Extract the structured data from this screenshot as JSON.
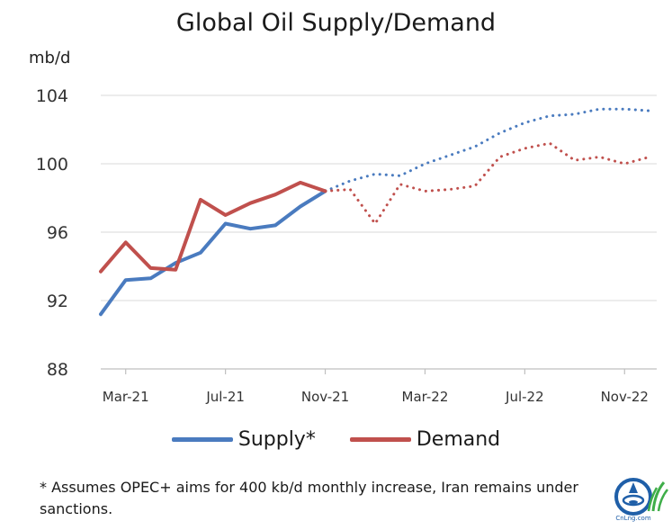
{
  "chart_data": {
    "type": "line",
    "title": "Global Oil Supply/Demand",
    "ylabel": "mb/d",
    "xlabel": "",
    "ylim": [
      88,
      104
    ],
    "yticks": [
      88,
      92,
      96,
      100,
      104
    ],
    "x": [
      "Feb-21",
      "Mar-21",
      "Apr-21",
      "May-21",
      "Jun-21",
      "Jul-21",
      "Aug-21",
      "Sep-21",
      "Oct-21",
      "Nov-21",
      "Dec-21",
      "Jan-22",
      "Feb-22",
      "Mar-22",
      "Apr-22",
      "May-22",
      "Jun-22",
      "Jul-22",
      "Aug-22",
      "Sep-22",
      "Oct-22",
      "Nov-22",
      "Dec-22"
    ],
    "xtick_labels": [
      "Mar-21",
      "Jul-21",
      "Nov-21",
      "Mar-22",
      "Jul-22",
      "Nov-22"
    ],
    "grid": true,
    "legend_position": "bottom",
    "series": [
      {
        "name": "Supply*",
        "color": "#4a7bbf",
        "values": [
          91.2,
          93.2,
          93.3,
          94.2,
          94.8,
          96.5,
          96.2,
          96.4,
          97.5,
          98.4,
          99.0,
          99.4,
          99.3,
          100.0,
          100.5,
          101.0,
          101.8,
          102.4,
          102.8,
          102.9,
          103.2,
          103.2,
          103.1
        ],
        "forecast_from": "Dec-21"
      },
      {
        "name": "Demand",
        "color": "#c0504d",
        "values": [
          93.7,
          95.4,
          93.9,
          93.8,
          97.9,
          97.0,
          97.7,
          98.2,
          98.9,
          98.4,
          98.5,
          96.5,
          98.8,
          98.4,
          98.5,
          98.7,
          100.4,
          100.9,
          101.2,
          100.2,
          100.4,
          100.0,
          100.4
        ],
        "forecast_from": "Dec-21"
      }
    ]
  },
  "footnote": "* Assumes OPEC+ aims for 400 kb/d monthly increase, Iran remains under sanctions.",
  "logo": {
    "text": "CnLng.com",
    "color": "#1f5fa8",
    "accent": "#3fae49"
  }
}
